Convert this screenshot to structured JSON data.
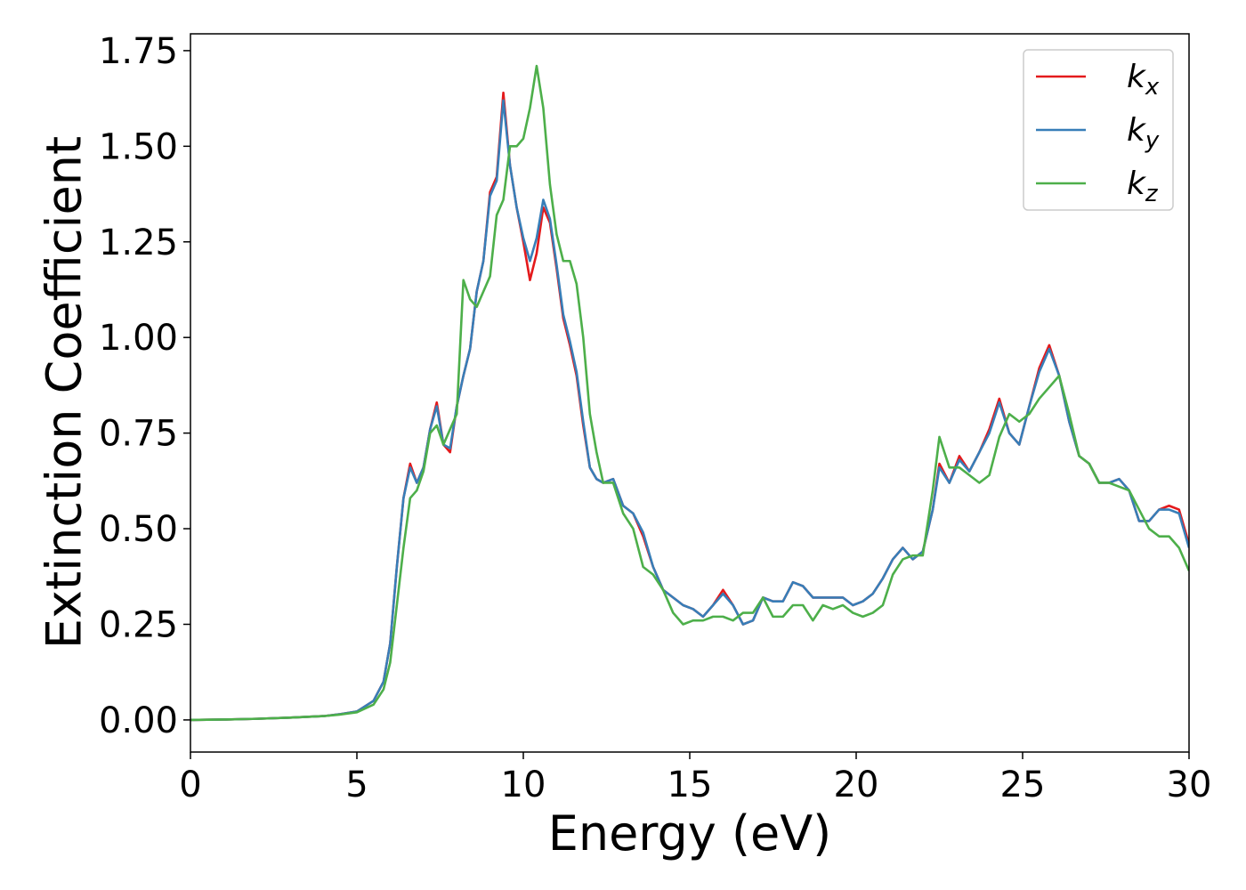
{
  "chart_data": {
    "type": "line",
    "xlabel": "Energy (eV)",
    "ylabel": "Extinction Coefficient",
    "x": [
      0,
      1,
      2,
      3,
      4,
      4.5,
      5,
      5.5,
      5.8,
      6.0,
      6.2,
      6.4,
      6.6,
      6.8,
      7.0,
      7.2,
      7.4,
      7.6,
      7.8,
      8.0,
      8.2,
      8.4,
      8.6,
      8.8,
      9.0,
      9.2,
      9.4,
      9.6,
      9.8,
      10.0,
      10.2,
      10.4,
      10.6,
      10.8,
      11.0,
      11.2,
      11.4,
      11.6,
      11.8,
      12.0,
      12.2,
      12.4,
      12.7,
      13.0,
      13.3,
      13.6,
      13.9,
      14.2,
      14.5,
      14.8,
      15.1,
      15.4,
      15.7,
      16.0,
      16.3,
      16.6,
      16.9,
      17.2,
      17.5,
      17.8,
      18.1,
      18.4,
      18.7,
      19.0,
      19.3,
      19.6,
      19.9,
      20.2,
      20.5,
      20.8,
      21.1,
      21.4,
      21.7,
      22.0,
      22.3,
      22.5,
      22.8,
      23.1,
      23.4,
      23.7,
      24.0,
      24.3,
      24.6,
      24.9,
      25.2,
      25.5,
      25.8,
      26.1,
      26.4,
      26.7,
      27.0,
      27.3,
      27.6,
      27.9,
      28.2,
      28.5,
      28.8,
      29.1,
      29.4,
      29.7,
      30.0
    ],
    "series": [
      {
        "name": "kx",
        "color": "#e41a1c",
        "values": [
          0,
          0.001,
          0.003,
          0.006,
          0.01,
          0.015,
          0.022,
          0.05,
          0.1,
          0.2,
          0.4,
          0.58,
          0.67,
          0.62,
          0.66,
          0.76,
          0.83,
          0.72,
          0.7,
          0.82,
          0.9,
          0.97,
          1.12,
          1.2,
          1.38,
          1.42,
          1.64,
          1.45,
          1.34,
          1.25,
          1.15,
          1.22,
          1.34,
          1.3,
          1.18,
          1.05,
          0.98,
          0.9,
          0.77,
          0.66,
          0.63,
          0.62,
          0.63,
          0.56,
          0.54,
          0.48,
          0.4,
          0.34,
          0.32,
          0.3,
          0.29,
          0.27,
          0.3,
          0.34,
          0.3,
          0.25,
          0.26,
          0.32,
          0.31,
          0.31,
          0.36,
          0.35,
          0.32,
          0.32,
          0.32,
          0.32,
          0.3,
          0.31,
          0.33,
          0.37,
          0.42,
          0.45,
          0.42,
          0.44,
          0.55,
          0.67,
          0.62,
          0.69,
          0.65,
          0.7,
          0.76,
          0.84,
          0.75,
          0.72,
          0.82,
          0.92,
          0.98,
          0.9,
          0.78,
          0.69,
          0.67,
          0.62,
          0.62,
          0.63,
          0.6,
          0.52,
          0.52,
          0.55,
          0.56,
          0.55,
          0.46
        ]
      },
      {
        "name": "ky",
        "color": "#377eb8",
        "values": [
          0,
          0.001,
          0.003,
          0.006,
          0.01,
          0.015,
          0.022,
          0.05,
          0.1,
          0.2,
          0.4,
          0.58,
          0.66,
          0.62,
          0.66,
          0.76,
          0.82,
          0.72,
          0.71,
          0.82,
          0.9,
          0.97,
          1.12,
          1.2,
          1.37,
          1.41,
          1.62,
          1.45,
          1.34,
          1.26,
          1.2,
          1.26,
          1.36,
          1.31,
          1.19,
          1.06,
          0.99,
          0.91,
          0.78,
          0.66,
          0.63,
          0.62,
          0.63,
          0.56,
          0.54,
          0.49,
          0.4,
          0.34,
          0.32,
          0.3,
          0.29,
          0.27,
          0.3,
          0.33,
          0.3,
          0.25,
          0.26,
          0.32,
          0.31,
          0.31,
          0.36,
          0.35,
          0.32,
          0.32,
          0.32,
          0.32,
          0.3,
          0.31,
          0.33,
          0.37,
          0.42,
          0.45,
          0.42,
          0.44,
          0.55,
          0.66,
          0.62,
          0.68,
          0.65,
          0.7,
          0.75,
          0.83,
          0.75,
          0.72,
          0.82,
          0.91,
          0.97,
          0.9,
          0.78,
          0.69,
          0.67,
          0.62,
          0.62,
          0.63,
          0.6,
          0.52,
          0.52,
          0.55,
          0.55,
          0.54,
          0.45
        ]
      },
      {
        "name": "kz",
        "color": "#4daf4a",
        "values": [
          0,
          0.001,
          0.003,
          0.006,
          0.01,
          0.014,
          0.02,
          0.04,
          0.08,
          0.15,
          0.3,
          0.45,
          0.58,
          0.6,
          0.65,
          0.75,
          0.77,
          0.72,
          0.76,
          0.8,
          1.15,
          1.1,
          1.08,
          1.12,
          1.16,
          1.32,
          1.36,
          1.5,
          1.5,
          1.52,
          1.6,
          1.71,
          1.6,
          1.4,
          1.27,
          1.2,
          1.2,
          1.14,
          1.0,
          0.8,
          0.7,
          0.62,
          0.62,
          0.54,
          0.5,
          0.4,
          0.38,
          0.34,
          0.28,
          0.25,
          0.26,
          0.26,
          0.27,
          0.27,
          0.26,
          0.28,
          0.28,
          0.32,
          0.27,
          0.27,
          0.3,
          0.3,
          0.26,
          0.3,
          0.29,
          0.3,
          0.28,
          0.27,
          0.28,
          0.3,
          0.38,
          0.42,
          0.43,
          0.43,
          0.6,
          0.74,
          0.66,
          0.66,
          0.64,
          0.62,
          0.64,
          0.74,
          0.8,
          0.78,
          0.8,
          0.84,
          0.87,
          0.9,
          0.8,
          0.69,
          0.67,
          0.62,
          0.62,
          0.61,
          0.6,
          0.55,
          0.5,
          0.48,
          0.48,
          0.45,
          0.39
        ]
      }
    ],
    "xlim": [
      0,
      30
    ],
    "xticks": [
      0,
      5,
      10,
      15,
      20,
      25,
      30
    ],
    "ylim": [
      -0.084,
      1.794
    ],
    "yticks": [
      {
        "value": 0,
        "label": "0.00"
      },
      {
        "value": 0.25,
        "label": "0.25"
      },
      {
        "value": 0.5,
        "label": "0.50"
      },
      {
        "value": 0.75,
        "label": "0.75"
      },
      {
        "value": 1.0,
        "label": "1.00"
      },
      {
        "value": 1.25,
        "label": "1.25"
      },
      {
        "value": 1.5,
        "label": "1.50"
      },
      {
        "value": 1.75,
        "label": "1.75"
      }
    ],
    "legend": "upper right"
  }
}
